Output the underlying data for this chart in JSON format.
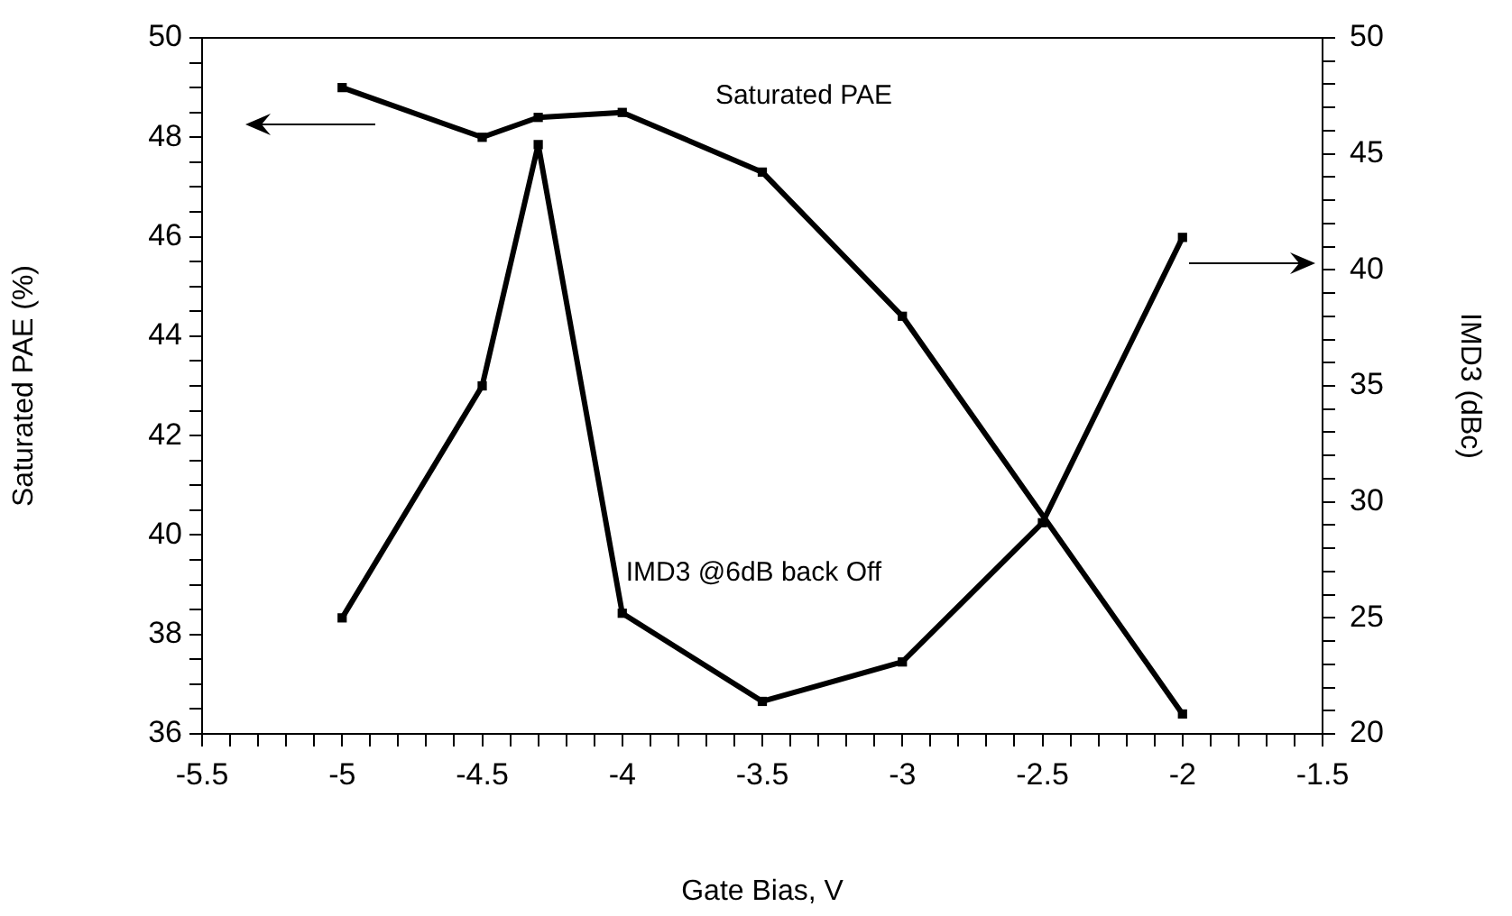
{
  "chart_data": {
    "type": "line",
    "xlabel": "Gate Bias, V",
    "ylabel": "Saturated PAE (%)",
    "y2label": "IMD3 (dBc)",
    "series": [
      {
        "name": "Saturated PAE",
        "color": "#000000",
        "x": [
          -5,
          -4.5,
          -4.3,
          -4,
          -3.5,
          -3,
          -2
        ],
        "values": [
          49.0,
          48.0,
          48.4,
          48.5,
          47.3,
          44.4,
          36.4
        ]
      },
      {
        "name": "IMD3 @6dB back Off",
        "color": "#000000",
        "axis": "y2",
        "x": [
          -5,
          -4.5,
          -4.3,
          -4,
          -3.5,
          -3,
          -2.5,
          -2
        ],
        "values": [
          25.0,
          35.0,
          45.4,
          25.2,
          21.4,
          23.1,
          29.1,
          41.4
        ]
      }
    ],
    "xlim": [
      -5.5,
      -1.5
    ],
    "xticks": [
      -5.5,
      {
        "value": -5.4,
        "label": null
      },
      {
        "value": -5.3,
        "label": null
      },
      {
        "value": -5.2,
        "label": null
      },
      {
        "value": -5.1,
        "label": null
      },
      -5,
      {
        "value": -4.9,
        "label": null
      },
      {
        "value": -4.8,
        "label": null
      },
      {
        "value": -4.7,
        "label": null
      },
      {
        "value": -4.6,
        "label": null
      },
      -4.5,
      {
        "value": -4.4,
        "label": null
      },
      {
        "value": -4.3,
        "label": null
      },
      {
        "value": -4.2,
        "label": null
      },
      {
        "value": -4.1,
        "label": null
      },
      -4,
      {
        "value": -3.9,
        "label": null
      },
      {
        "value": -3.8,
        "label": null
      },
      {
        "value": -3.7,
        "label": null
      },
      {
        "value": -3.6,
        "label": null
      },
      -3.5,
      {
        "value": -3.4,
        "label": null
      },
      {
        "value": -3.3,
        "label": null
      },
      {
        "value": -3.2,
        "label": null
      },
      {
        "value": -3.1,
        "label": null
      },
      -3,
      {
        "value": -2.9,
        "label": null
      },
      {
        "value": -2.8,
        "label": null
      },
      {
        "value": -2.7,
        "label": null
      },
      {
        "value": -2.6,
        "label": null
      },
      -2.5,
      {
        "value": -2.4,
        "label": null
      },
      {
        "value": -2.3,
        "label": null
      },
      {
        "value": -2.2,
        "label": null
      },
      {
        "value": -2.1,
        "label": null
      },
      -2,
      {
        "value": -1.9,
        "label": null
      },
      {
        "value": -1.8,
        "label": null
      },
      {
        "value": -1.7,
        "label": null
      },
      {
        "value": -1.6,
        "label": null
      },
      -1.5
    ],
    "ylim": [
      36,
      50
    ],
    "yticks": [
      36,
      {
        "value": 36.5,
        "label": null
      },
      {
        "value": 37,
        "label": null
      },
      {
        "value": 37.5,
        "label": null
      },
      38,
      {
        "value": 38.5,
        "label": null
      },
      {
        "value": 39,
        "label": null
      },
      {
        "value": 39.5,
        "label": null
      },
      40,
      {
        "value": 40.5,
        "label": null
      },
      {
        "value": 41,
        "label": null
      },
      {
        "value": 41.5,
        "label": null
      },
      42,
      {
        "value": 42.5,
        "label": null
      },
      {
        "value": 43,
        "label": null
      },
      {
        "value": 43.5,
        "label": null
      },
      44,
      {
        "value": 44.5,
        "label": null
      },
      {
        "value": 45,
        "label": null
      },
      {
        "value": 45.5,
        "label": null
      },
      46,
      {
        "value": 46.5,
        "label": null
      },
      {
        "value": 47,
        "label": null
      },
      {
        "value": 47.5,
        "label": null
      },
      48,
      {
        "value": 48.5,
        "label": null
      },
      {
        "value": 49,
        "label": null
      },
      {
        "value": 49.5,
        "label": null
      },
      50
    ],
    "y2lim": [
      20,
      50
    ],
    "y2ticks": [
      20,
      {
        "value": 21,
        "label": null
      },
      {
        "value": 22,
        "label": null
      },
      {
        "value": 23,
        "label": null
      },
      {
        "value": 24,
        "label": null
      },
      25,
      {
        "value": 26,
        "label": null
      },
      {
        "value": 27,
        "label": null
      },
      {
        "value": 28,
        "label": null
      },
      {
        "value": 29,
        "label": null
      },
      30,
      {
        "value": 31,
        "label": null
      },
      {
        "value": 32,
        "label": null
      },
      {
        "value": 33,
        "label": null
      },
      {
        "value": 34,
        "label": null
      },
      35,
      {
        "value": 36,
        "label": null
      },
      {
        "value": 37,
        "label": null
      },
      {
        "value": 38,
        "label": null
      },
      {
        "value": 39,
        "label": null
      },
      40,
      {
        "value": 41,
        "label": null
      },
      {
        "value": 42,
        "label": null
      },
      {
        "value": 43,
        "label": null
      },
      {
        "value": 44,
        "label": null
      },
      45,
      {
        "value": 46,
        "label": null
      },
      {
        "value": 47,
        "label": null
      },
      {
        "value": 48,
        "label": null
      },
      {
        "value": 49,
        "label": null
      },
      50
    ],
    "grid": false,
    "legend": false,
    "marker": "square",
    "line_style": "solid"
  }
}
